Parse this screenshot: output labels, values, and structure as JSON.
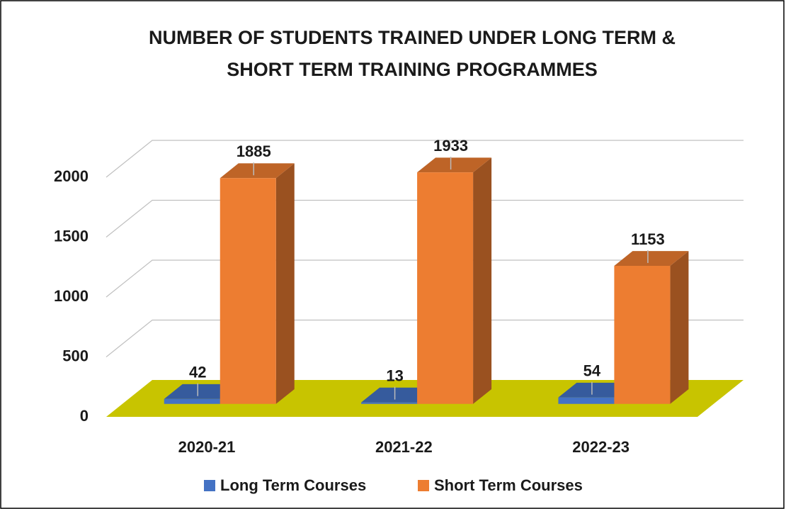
{
  "chart_data": {
    "type": "bar3d",
    "title": [
      "NUMBER OF STUDENTS TRAINED UNDER LONG TERM &",
      "SHORT TERM TRAINING PROGRAMMES"
    ],
    "categories": [
      "2020-21",
      "2021-22",
      "2022-23"
    ],
    "series": [
      {
        "name": "Long Term Courses",
        "color": "#4472c4",
        "values": [
          42,
          13,
          54
        ]
      },
      {
        "name": "Short Term Courses",
        "color": "#ed7d31",
        "values": [
          1885,
          1933,
          1153
        ]
      }
    ],
    "ylim": [
      0,
      2000
    ],
    "yticks": [
      0,
      500,
      1000,
      1500,
      2000
    ],
    "grid": true,
    "legend": "bottom"
  }
}
